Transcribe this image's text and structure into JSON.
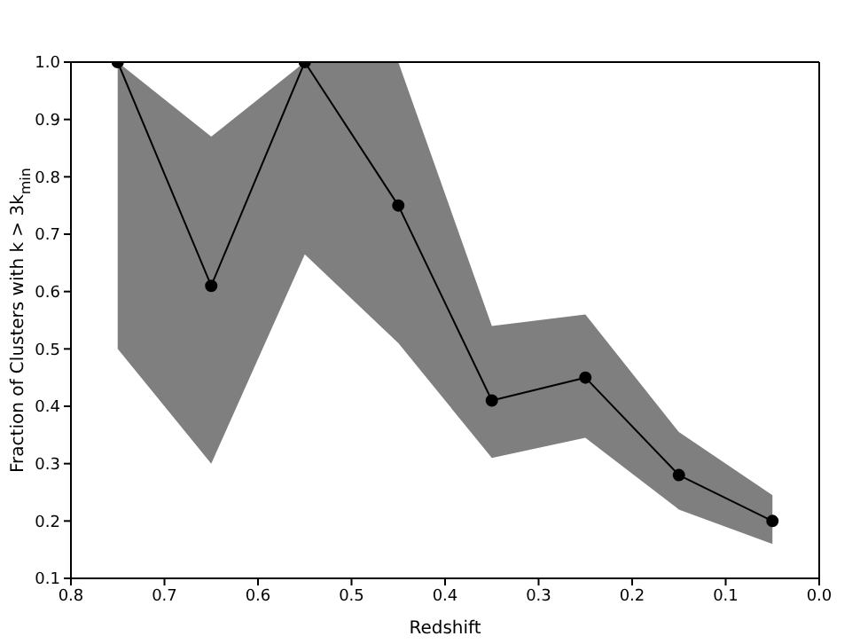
{
  "chart_data": {
    "type": "line",
    "xlabel": "Redshift",
    "ylabel": "Fraction of Clusters with k > 3k$_{min}$",
    "x": [
      0.75,
      0.65,
      0.55,
      0.45,
      0.35,
      0.25,
      0.15,
      0.05
    ],
    "series": [
      {
        "color": "#000000",
        "values": [
          1.0,
          0.61,
          1.0,
          0.75,
          0.41,
          0.45,
          0.28,
          0.2
        ],
        "lower": [
          0.5,
          0.3,
          0.665,
          0.51,
          0.31,
          0.345,
          0.22,
          0.16
        ],
        "upper": [
          1.0,
          0.87,
          1.0,
          1.0,
          0.54,
          0.56,
          0.355,
          0.245
        ]
      }
    ],
    "xlim": [
      0.8,
      0.0
    ],
    "xticks": [
      0.8,
      0.7,
      0.6,
      0.5,
      0.4,
      0.3,
      0.2,
      0.1,
      {
        "value": 0,
        "label": "0.0"
      }
    ],
    "ylim": [
      0.1,
      1.0
    ],
    "yticks": [
      0.1,
      0.2,
      0.3,
      0.4,
      0.5,
      0.6,
      0.7,
      0.8,
      0.9,
      {
        "value": 1,
        "label": "1.0"
      }
    ],
    "marker": "circle",
    "line_style": "solid",
    "grid": false,
    "legend": false
  }
}
